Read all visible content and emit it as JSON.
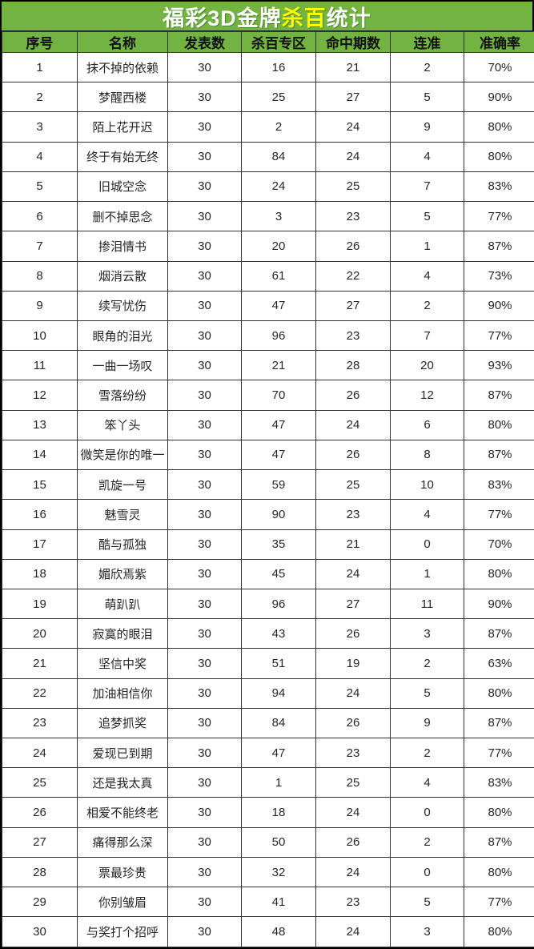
{
  "title_bar": {
    "prefix": "福彩3D金牌",
    "highlight": "杀百",
    "suffix": "统计"
  },
  "colors": {
    "header_green": "#72b342",
    "title_text": "#ffffff",
    "title_highlight": "#ffff00",
    "grid_border": "#333333",
    "cell_text": "#262626"
  },
  "chart_data": {
    "type": "table",
    "title": "福彩3D金牌杀百统计",
    "columns": [
      "序号",
      "名称",
      "发表数",
      "杀百专区",
      "命中期数",
      "连准",
      "准确率"
    ],
    "rows": [
      [
        "1",
        "抹不掉的依赖",
        "30",
        "16",
        "21",
        "2",
        "70%"
      ],
      [
        "2",
        "梦醒西楼",
        "30",
        "25",
        "27",
        "5",
        "90%"
      ],
      [
        "3",
        "陌上花开迟",
        "30",
        "2",
        "24",
        "9",
        "80%"
      ],
      [
        "4",
        "终于有始无终",
        "30",
        "84",
        "24",
        "4",
        "80%"
      ],
      [
        "5",
        "旧城空念",
        "30",
        "24",
        "25",
        "7",
        "83%"
      ],
      [
        "6",
        "删不掉思念",
        "30",
        "3",
        "23",
        "5",
        "77%"
      ],
      [
        "7",
        "掺泪情书",
        "30",
        "20",
        "26",
        "1",
        "87%"
      ],
      [
        "8",
        "烟消云散",
        "30",
        "61",
        "22",
        "4",
        "73%"
      ],
      [
        "9",
        "续写忧伤",
        "30",
        "47",
        "27",
        "2",
        "90%"
      ],
      [
        "10",
        "眼角的泪光",
        "30",
        "96",
        "23",
        "7",
        "77%"
      ],
      [
        "11",
        "一曲一场叹",
        "30",
        "21",
        "28",
        "20",
        "93%"
      ],
      [
        "12",
        "雪落纷纷",
        "30",
        "70",
        "26",
        "12",
        "87%"
      ],
      [
        "13",
        "笨丫头",
        "30",
        "47",
        "24",
        "6",
        "80%"
      ],
      [
        "14",
        "微笑是你的唯一",
        "30",
        "47",
        "26",
        "8",
        "87%"
      ],
      [
        "15",
        "凯旋一号",
        "30",
        "59",
        "25",
        "10",
        "83%"
      ],
      [
        "16",
        "魅雪灵",
        "30",
        "90",
        "23",
        "4",
        "77%"
      ],
      [
        "17",
        "酷与孤独",
        "30",
        "35",
        "21",
        "0",
        "70%"
      ],
      [
        "18",
        "媚欣焉紫",
        "30",
        "45",
        "24",
        "1",
        "80%"
      ],
      [
        "19",
        "萌趴趴",
        "30",
        "96",
        "27",
        "11",
        "90%"
      ],
      [
        "20",
        "寂寞的眼泪",
        "30",
        "43",
        "26",
        "3",
        "87%"
      ],
      [
        "21",
        "坚信中奖",
        "30",
        "51",
        "19",
        "2",
        "63%"
      ],
      [
        "22",
        "加油相信你",
        "30",
        "94",
        "24",
        "5",
        "80%"
      ],
      [
        "23",
        "追梦抓奖",
        "30",
        "84",
        "26",
        "9",
        "87%"
      ],
      [
        "24",
        "爱现已到期",
        "30",
        "47",
        "23",
        "2",
        "77%"
      ],
      [
        "25",
        "还是我太真",
        "30",
        "1",
        "25",
        "4",
        "83%"
      ],
      [
        "26",
        "相爱不能终老",
        "30",
        "18",
        "24",
        "0",
        "80%"
      ],
      [
        "27",
        "痛得那么深",
        "30",
        "50",
        "26",
        "2",
        "87%"
      ],
      [
        "28",
        "票最珍贵",
        "30",
        "32",
        "24",
        "0",
        "80%"
      ],
      [
        "29",
        "你别皱眉",
        "30",
        "41",
        "23",
        "5",
        "77%"
      ],
      [
        "30",
        "与奖打个招呼",
        "30",
        "48",
        "24",
        "3",
        "80%"
      ]
    ]
  }
}
